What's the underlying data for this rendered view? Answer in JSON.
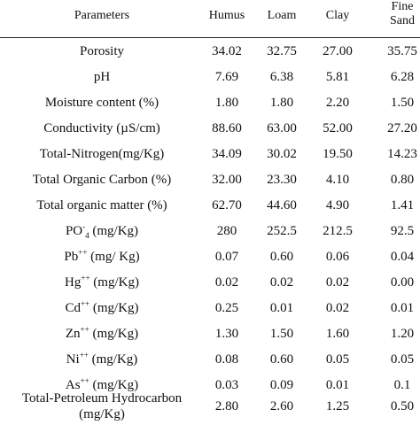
{
  "headers": {
    "parameters": "Parameters",
    "humus": "Humus",
    "loam": "Loam",
    "clay": "Clay",
    "fine_line1": "Fine",
    "fine_line2": "Sand"
  },
  "rows": [
    {
      "label": "Porosity",
      "humus": "34.02",
      "loam": "32.75",
      "clay": "27.00",
      "fine": "35.75"
    },
    {
      "label": "pH",
      "humus": "7.69",
      "loam": "6.38",
      "clay": "5.81",
      "fine": "6.28"
    },
    {
      "label": "Moisture content (%)",
      "humus": "1.80",
      "loam": "1.80",
      "clay": "2.20",
      "fine": "1.50"
    },
    {
      "label": "Conductivity (µS/cm)",
      "humus": "88.60",
      "loam": "63.00",
      "clay": "52.00",
      "fine": "27.20"
    },
    {
      "label": "Total-Nitrogen(mg/Kg)",
      "humus": "34.09",
      "loam": "30.02",
      "clay": "19.50",
      "fine": "14.23"
    },
    {
      "label": "Total Organic Carbon (%)",
      "humus": "32.00",
      "loam": "23.30",
      "clay": "4.10",
      "fine": "0.80"
    },
    {
      "label": "Total organic matter (%)",
      "humus": "62.70",
      "loam": "44.60",
      "clay": "4.90",
      "fine": "1.41"
    },
    {
      "label_base": "PO",
      "label_sup": "-",
      "label_sub": "4",
      "label_rest": " (mg/Kg)",
      "humus": "280",
      "loam": "252.5",
      "clay": "212.5",
      "fine": "92.5"
    },
    {
      "label_base": "Pb",
      "label_sup": "++",
      "label_rest": " (mg/ Kg)",
      "humus": "0.07",
      "loam": "0.60",
      "clay": "0.06",
      "fine": "0.04"
    },
    {
      "label_base": "Hg",
      "label_sup": "++",
      "label_rest": " (mg/Kg)",
      "humus": "0.02",
      "loam": "0.02",
      "clay": "0.02",
      "fine": "0.00"
    },
    {
      "label_base": "Cd",
      "label_sup": "++",
      "label_rest": " (mg/Kg)",
      "humus": "0.25",
      "loam": "0.01",
      "clay": "0.02",
      "fine": "0.01"
    },
    {
      "label_base": "Zn",
      "label_sup": "++",
      "label_rest": " (mg/Kg)",
      "humus": "1.30",
      "loam": "1.50",
      "clay": "1.60",
      "fine": "1.20"
    },
    {
      "label_base": "Ni",
      "label_sup": "++",
      "label_rest": " (mg/Kg)",
      "humus": "0.08",
      "loam": "0.60",
      "clay": "0.05",
      "fine": "0.05"
    },
    {
      "label_base": "As",
      "label_sup": "++",
      "label_rest": " (mg/Kg)",
      "humus": "0.03",
      "loam": "0.09",
      "clay": "0.01",
      "fine": "0.1"
    },
    {
      "label_line1": "Total-Petroleum Hydrocarbon",
      "label_line2": "(mg/Kg)",
      "humus": "2.80",
      "loam": "2.60",
      "clay": "1.25",
      "fine": "0.50"
    }
  ]
}
